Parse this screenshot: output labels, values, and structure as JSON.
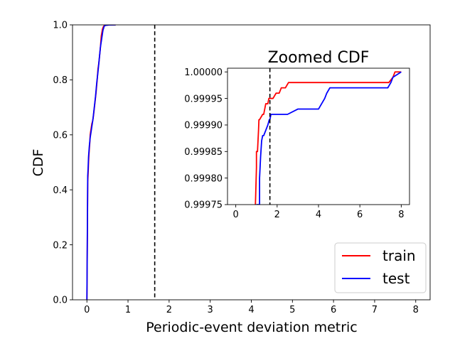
{
  "chart_data": [
    {
      "id": "main",
      "type": "line",
      "title": "",
      "xlabel": "Periodic-event deviation metric",
      "ylabel": "CDF",
      "xlim": [
        -0.35,
        8.35
      ],
      "ylim": [
        0.0,
        1.0
      ],
      "xticks": [
        0,
        1,
        2,
        3,
        4,
        5,
        6,
        7,
        8
      ],
      "yticks": [
        0.0,
        0.2,
        0.4,
        0.6,
        0.8,
        1.0
      ],
      "xtick_labels": [
        "0",
        "1",
        "2",
        "3",
        "4",
        "5",
        "6",
        "7",
        "8"
      ],
      "ytick_labels": [
        "0.0",
        "0.2",
        "0.4",
        "0.6",
        "0.8",
        "1.0"
      ],
      "grid": false,
      "legend_position": "lower-right",
      "threshold_line": {
        "x": 1.65,
        "style": "dashed",
        "color": "#000000"
      },
      "series": [
        {
          "name": "train",
          "color": "#ff0000",
          "x": [
            0.0,
            0.01,
            0.02,
            0.03,
            0.04,
            0.05,
            0.07,
            0.08,
            0.1,
            0.12,
            0.14,
            0.16,
            0.19,
            0.22,
            0.25,
            0.27,
            0.29,
            0.31,
            0.33,
            0.35,
            0.38,
            0.4,
            0.42,
            0.45,
            0.55,
            0.7
          ],
          "y": [
            0.0,
            0.2,
            0.43,
            0.46,
            0.5,
            0.53,
            0.57,
            0.6,
            0.62,
            0.64,
            0.65,
            0.67,
            0.71,
            0.75,
            0.8,
            0.84,
            0.86,
            0.89,
            0.92,
            0.96,
            0.985,
            0.993,
            0.997,
            0.999,
            0.9999,
            1.0
          ]
        },
        {
          "name": "test",
          "color": "#0000ff",
          "x": [
            0.0,
            0.01,
            0.02,
            0.03,
            0.04,
            0.06,
            0.08,
            0.1,
            0.12,
            0.15,
            0.18,
            0.21,
            0.24,
            0.27,
            0.29,
            0.31,
            0.33,
            0.36,
            0.39,
            0.42,
            0.45,
            0.55,
            0.7
          ],
          "y": [
            0.0,
            0.22,
            0.45,
            0.48,
            0.52,
            0.56,
            0.59,
            0.61,
            0.63,
            0.66,
            0.7,
            0.74,
            0.79,
            0.83,
            0.86,
            0.89,
            0.92,
            0.95,
            0.98,
            0.995,
            0.998,
            0.9999,
            1.0
          ]
        }
      ]
    },
    {
      "id": "inset",
      "type": "line",
      "title": "Zoomed CDF",
      "xlabel": "",
      "ylabel": "",
      "xlim": [
        -0.4,
        8.4
      ],
      "ylim": [
        0.99975,
        1.000007
      ],
      "xticks": [
        0,
        2,
        4,
        6,
        8
      ],
      "yticks": [
        0.99975,
        0.9998,
        0.99985,
        0.9999,
        0.99995,
        1.0
      ],
      "xtick_labels": [
        "0",
        "2",
        "4",
        "6",
        "8"
      ],
      "ytick_labels": [
        "0.99975",
        "0.99980",
        "0.99985",
        "0.99990",
        "0.99995",
        "1.00000"
      ],
      "grid": false,
      "threshold_line": {
        "x": 1.65,
        "style": "dashed",
        "color": "#000000"
      },
      "series": [
        {
          "name": "train",
          "color": "#ff0000",
          "x": [
            0.95,
            1.0,
            1.0,
            1.05,
            1.1,
            1.12,
            1.15,
            1.3,
            1.35,
            1.45,
            1.5,
            1.55,
            1.6,
            1.7,
            1.75,
            1.8,
            1.95,
            2.0,
            2.1,
            2.2,
            2.4,
            2.55,
            3.0,
            3.5,
            4.0,
            5.0,
            6.0,
            7.0,
            7.4,
            7.6,
            7.7,
            8.0
          ],
          "y": [
            0.99975,
            0.99982,
            0.99985,
            0.99985,
            0.99989,
            0.99991,
            0.99991,
            0.99992,
            0.99992,
            0.99994,
            0.99994,
            0.99994,
            0.99995,
            0.99995,
            0.99995,
            0.99995,
            0.99996,
            0.99996,
            0.99996,
            0.99997,
            0.99997,
            0.99998,
            0.99998,
            0.99998,
            0.99998,
            0.99998,
            0.99998,
            0.99998,
            0.99998,
            0.99999,
            1.0,
            1.0
          ]
        },
        {
          "name": "test",
          "color": "#0000ff",
          "x": [
            1.0,
            1.05,
            1.15,
            1.15,
            1.2,
            1.25,
            1.3,
            1.35,
            1.45,
            1.55,
            1.62,
            1.65,
            1.7,
            1.9,
            2.5,
            3.0,
            3.6,
            4.0,
            4.15,
            4.3,
            4.4,
            4.55,
            4.7,
            5.0,
            6.0,
            7.0,
            7.35,
            7.5,
            7.6,
            8.0
          ],
          "y": [
            0.99975,
            0.99975,
            0.99975,
            0.9998,
            0.99984,
            0.99987,
            0.99988,
            0.99988,
            0.99989,
            0.9999,
            0.99991,
            0.99991,
            0.99992,
            0.99992,
            0.99992,
            0.99993,
            0.99993,
            0.99993,
            0.99994,
            0.99995,
            0.99996,
            0.99997,
            0.99997,
            0.99997,
            0.99997,
            0.99997,
            0.99997,
            0.99998,
            0.99999,
            1.0
          ]
        }
      ]
    }
  ]
}
